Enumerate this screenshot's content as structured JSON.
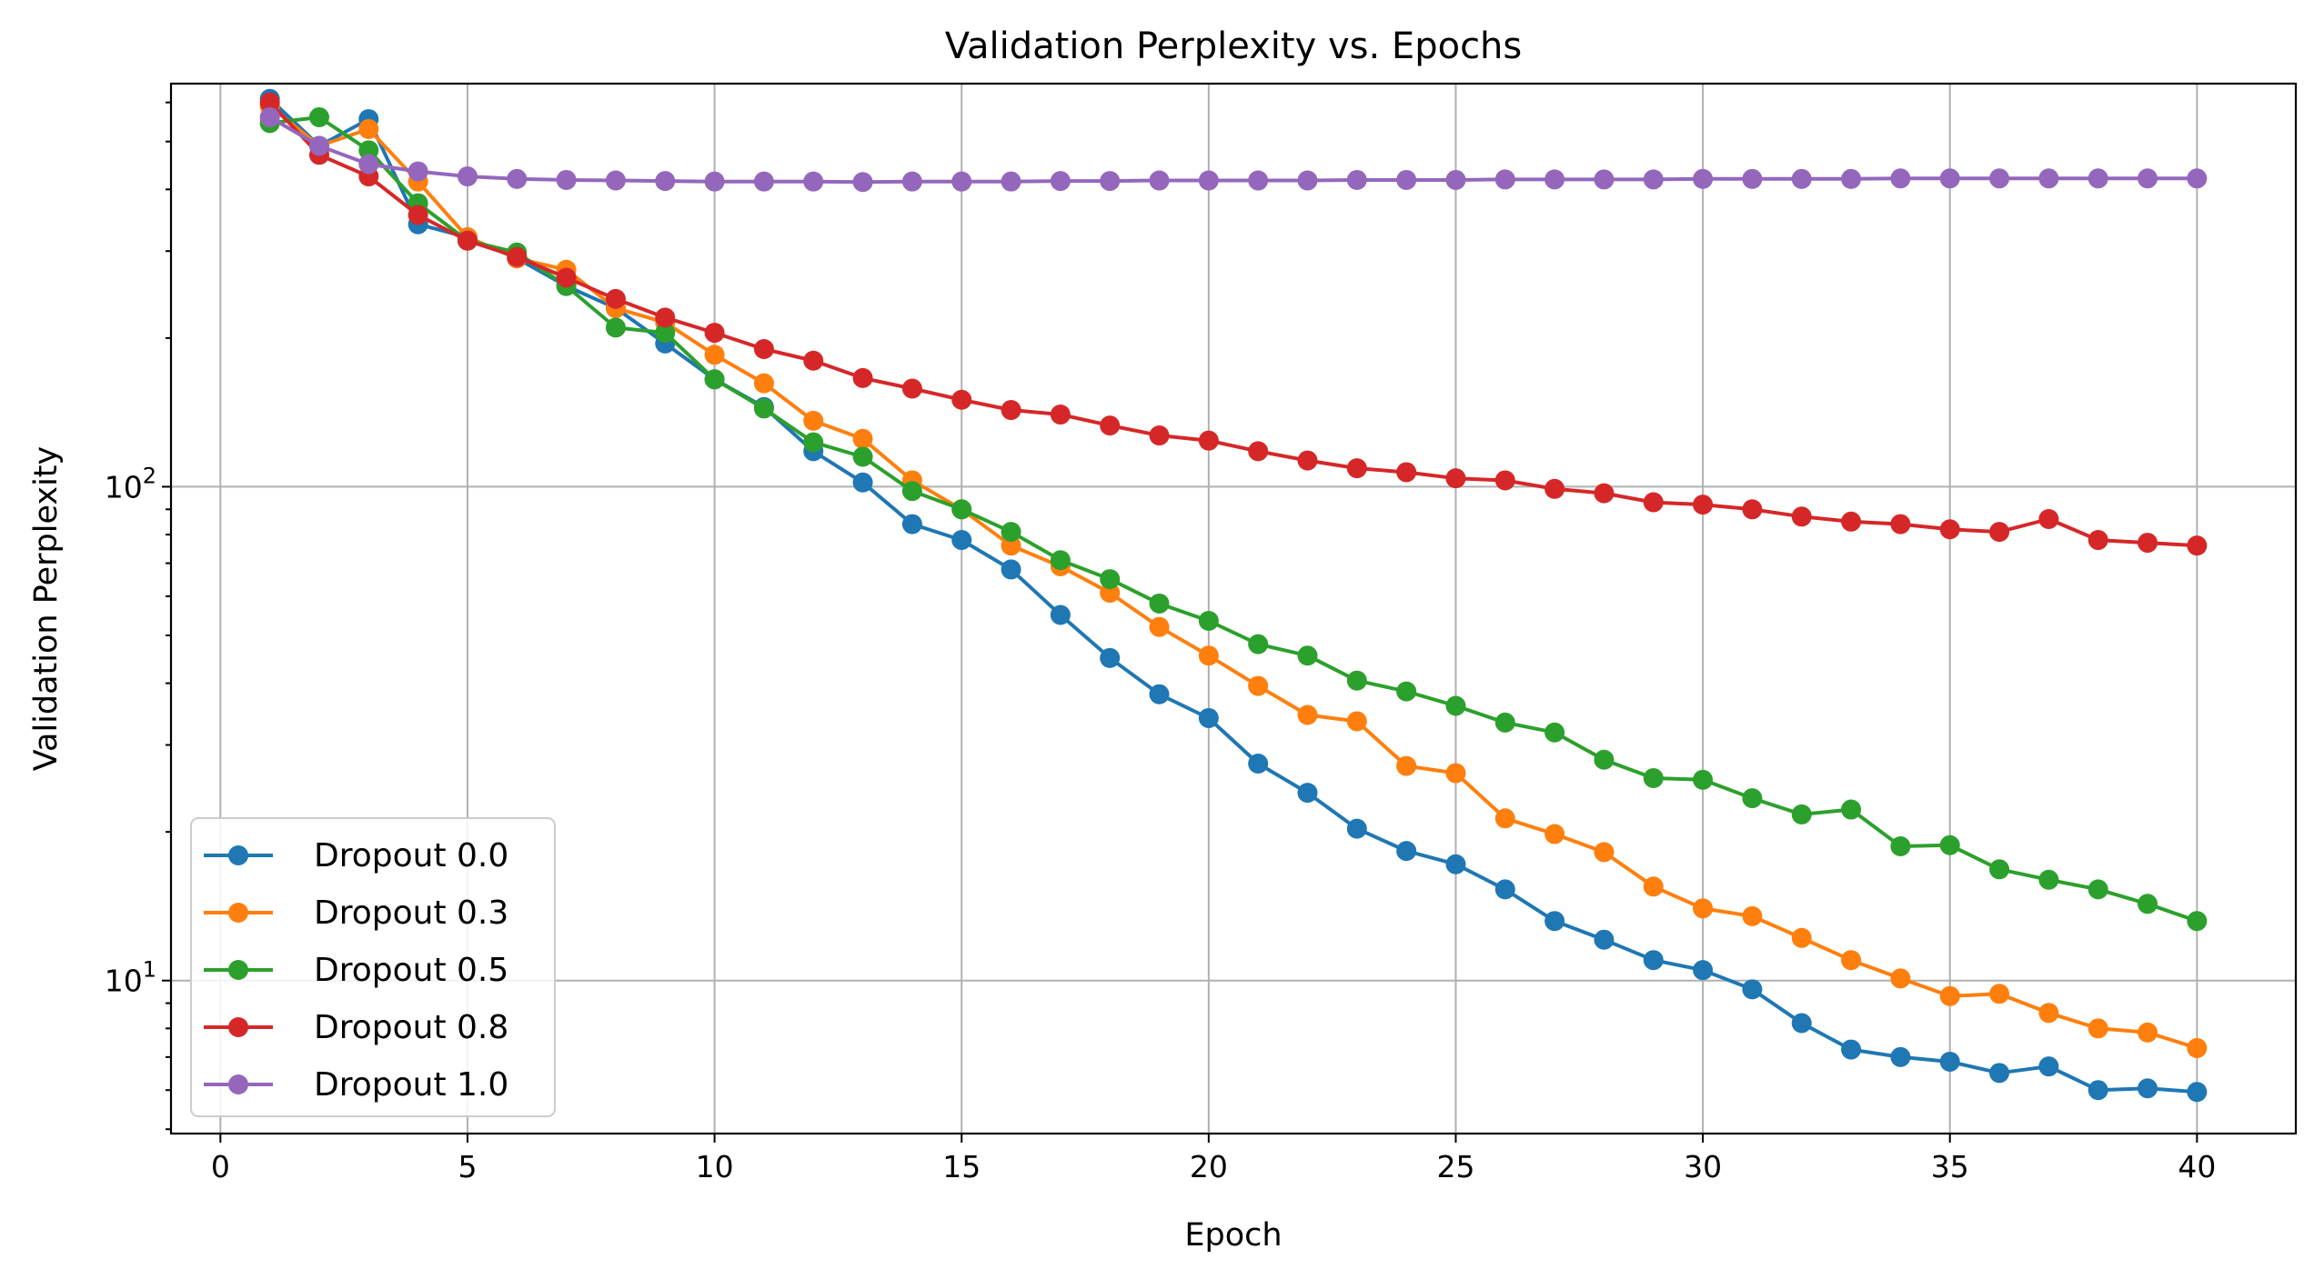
{
  "chart_data": {
    "type": "line",
    "title": "Validation Perplexity vs. Epochs",
    "xlabel": "Epoch",
    "ylabel": "Validation Perplexity",
    "yscale": "log",
    "xlim": [
      -1,
      42
    ],
    "ylim": [
      4.9,
      655
    ],
    "xticks": [
      0,
      5,
      10,
      15,
      20,
      25,
      30,
      35,
      40
    ],
    "yticks": [
      10,
      100
    ],
    "ytick_labels": [
      {
        "base": "10",
        "exp": "1"
      },
      {
        "base": "10",
        "exp": "2"
      }
    ],
    "grid": true,
    "legend_position": "lower-left",
    "x": [
      1,
      2,
      3,
      4,
      5,
      6,
      7,
      8,
      9,
      10,
      11,
      12,
      13,
      14,
      15,
      16,
      17,
      18,
      19,
      20,
      21,
      22,
      23,
      24,
      25,
      26,
      27,
      28,
      29,
      30,
      31,
      32,
      33,
      34,
      35,
      36,
      37,
      38,
      39,
      40
    ],
    "series": [
      {
        "name": "Dropout 0.0",
        "color": "#1f77b4",
        "values": [
          610,
          490,
          555,
          340,
          320,
          290,
          255,
          230,
          195,
          165,
          145,
          118,
          102,
          84,
          78,
          68,
          55,
          45,
          38,
          34,
          27.5,
          24,
          20.3,
          18.3,
          17.2,
          15.3,
          13.2,
          12.1,
          11.0,
          10.5,
          9.6,
          8.2,
          7.25,
          7.0,
          6.85,
          6.5,
          6.7,
          6.0,
          6.05,
          5.95
        ]
      },
      {
        "name": "Dropout 0.3",
        "color": "#ff7f0e",
        "values": [
          590,
          490,
          530,
          415,
          320,
          290,
          275,
          230,
          215,
          185,
          162,
          136,
          125,
          103,
          90,
          76,
          69,
          61,
          52,
          45.5,
          39.5,
          34.5,
          33.5,
          27.2,
          26.3,
          21.3,
          19.8,
          18.2,
          15.5,
          14.0,
          13.5,
          12.2,
          11.0,
          10.1,
          9.3,
          9.4,
          8.6,
          8.0,
          7.85,
          7.3
        ]
      },
      {
        "name": "Dropout 0.5",
        "color": "#2ca02c",
        "values": [
          545,
          560,
          480,
          375,
          315,
          298,
          255,
          210,
          205,
          165,
          144,
          123,
          115,
          98,
          90,
          81,
          71,
          65,
          58,
          53.5,
          48,
          45.5,
          40.5,
          38.5,
          36,
          33.3,
          31.8,
          28,
          25.7,
          25.5,
          23.4,
          21.7,
          22.2,
          18.7,
          18.8,
          16.8,
          16.0,
          15.3,
          14.3,
          13.2
        ]
      },
      {
        "name": "Dropout 0.8",
        "color": "#d62728",
        "values": [
          600,
          470,
          425,
          355,
          315,
          292,
          265,
          240,
          220,
          205,
          190,
          180,
          166,
          158,
          150,
          143,
          140,
          133,
          127,
          124,
          118,
          113,
          109,
          107,
          104,
          103,
          99,
          97,
          93,
          92,
          90,
          87,
          85,
          84,
          82,
          81,
          86,
          78,
          77,
          76
        ]
      },
      {
        "name": "Dropout 1.0",
        "color": "#9467bd",
        "values": [
          560,
          490,
          450,
          435,
          425,
          420,
          418,
          417,
          416,
          415,
          415,
          415,
          414,
          415,
          415,
          415,
          416,
          416,
          417,
          417,
          417,
          417,
          418,
          418,
          418,
          419,
          419,
          419,
          419,
          420,
          420,
          420,
          420,
          421,
          421,
          421,
          421,
          421,
          421,
          421
        ]
      }
    ]
  }
}
